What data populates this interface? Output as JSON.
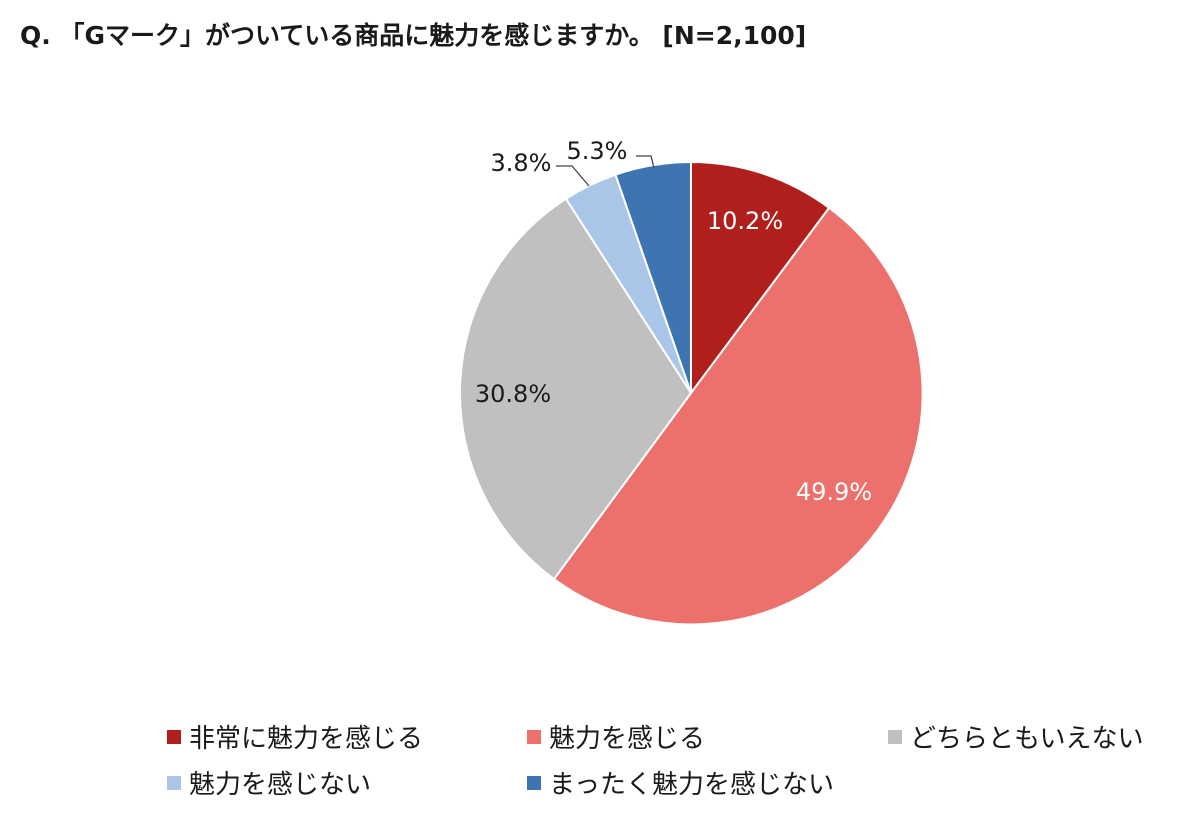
{
  "chart_data": {
    "type": "pie",
    "title": "Q. 「Gマーク」がついている商品に魅力を感じますか。 [N=2,100]",
    "slices": [
      {
        "name": "非常に魅力を感じる",
        "value": 10.2,
        "label": "10.2%",
        "color": "#b01f1b",
        "label_color": "#ffffff"
      },
      {
        "name": "魅力を感じる",
        "value": 49.9,
        "label": "49.9%",
        "color": "#ec706b",
        "label_color": "#ffffff"
      },
      {
        "name": "どちらともいえない",
        "value": 30.8,
        "label": "30.8%",
        "color": "#c0c0c0",
        "label_color": "#1a1a1a"
      },
      {
        "name": "魅力を感じない",
        "value": 3.8,
        "label": "3.8%",
        "color": "#a9c5e8",
        "label_color": "#1a1a1a"
      },
      {
        "name": "まったく魅力を感じない",
        "value": 5.3,
        "label": "5.3%",
        "color": "#3f74b2",
        "label_color": "#1a1a1a"
      }
    ],
    "start": "12 o'clock",
    "direction": "clockwise",
    "legend_position": "bottom"
  }
}
